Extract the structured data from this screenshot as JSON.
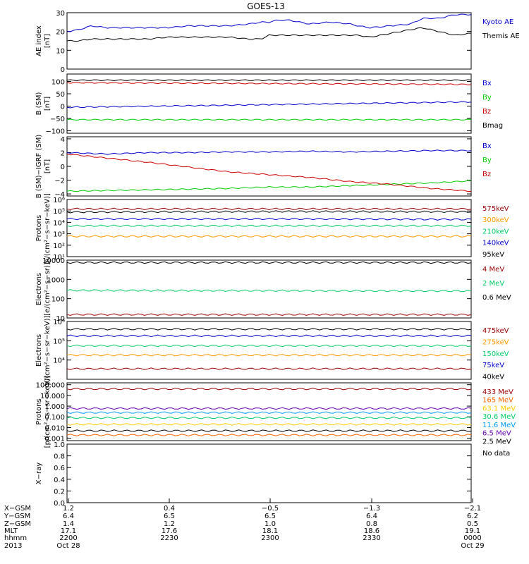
{
  "chart_data": {
    "type": "line",
    "title": "GOES-13",
    "panels": [
      {
        "id": "ae",
        "ylabel": [
          "AE index",
          "[nT]"
        ],
        "yscale": "linear",
        "ylim": [
          0,
          30
        ],
        "ticks": [
          0,
          10,
          20,
          30
        ],
        "tick_labels": [
          "0",
          "10",
          "20",
          "30"
        ],
        "series": [
          {
            "name": "Kyoto AE",
            "color": "#0000cc",
            "x": [
              0,
              0.03,
              0.06,
              0.1,
              0.15,
              0.2,
              0.25,
              0.3,
              0.35,
              0.4,
              0.45,
              0.48,
              0.5,
              0.52,
              0.55,
              0.6,
              0.65,
              0.7,
              0.72,
              0.75,
              0.8,
              0.85,
              0.88,
              0.92,
              0.96,
              1.0
            ],
            "y": [
              20,
              21,
              23,
              22,
              22,
              22,
              22,
              23,
              23,
              23,
              24,
              25,
              25,
              26,
              26,
              24,
              25,
              24,
              23,
              22,
              23,
              24,
              27,
              27,
              29,
              29
            ]
          },
          {
            "name": "Themis AE",
            "color": "#000000",
            "x": [
              0,
              0.03,
              0.06,
              0.1,
              0.15,
              0.2,
              0.25,
              0.3,
              0.35,
              0.4,
              0.45,
              0.48,
              0.5,
              0.52,
              0.55,
              0.6,
              0.65,
              0.7,
              0.72,
              0.75,
              0.8,
              0.85,
              0.88,
              0.92,
              0.96,
              1.0
            ],
            "y": [
              15,
              15,
              16,
              16,
              16,
              16,
              17,
              17,
              17,
              17,
              16,
              16,
              18,
              18,
              18,
              18,
              18,
              18,
              18,
              17,
              19,
              21,
              22,
              20,
              18,
              19
            ]
          }
        ],
        "legend": [
          "Kyoto AE",
          "Themis AE"
        ]
      },
      {
        "id": "bsm",
        "ylabel": [
          "B (SM)",
          "[nT]"
        ],
        "yscale": "linear",
        "ylim": [
          -110,
          130
        ],
        "ticks": [
          -100,
          -50,
          0,
          50,
          100
        ],
        "tick_labels": [
          "−100",
          "−50",
          "0",
          "50",
          "100"
        ],
        "series": [
          {
            "name": "Bx",
            "color": "#0000cc",
            "x": [
              0,
              1
            ],
            "y": [
              -5,
              17
            ]
          },
          {
            "name": "By",
            "color": "#00cc00",
            "x": [
              0,
              1
            ],
            "y": [
              -55,
              -55
            ]
          },
          {
            "name": "Bz",
            "color": "#cc0000",
            "x": [
              0,
              1
            ],
            "y": [
              95,
              88
            ]
          },
          {
            "name": "Bmag",
            "color": "#000000",
            "x": [
              0,
              1
            ],
            "y": [
              105,
              105
            ]
          }
        ],
        "legend": [
          "Bx",
          "By",
          "Bz",
          "Bmag"
        ]
      },
      {
        "id": "bigrf",
        "ylabel": [
          "B (SM)−IGRF (SM)",
          "[nT]"
        ],
        "yscale": "linear",
        "ylim": [
          -4.3,
          4.3
        ],
        "ticks": [
          -4,
          -2,
          0,
          2,
          4
        ],
        "tick_labels": [
          "−4",
          "−2",
          "0",
          "2",
          "4"
        ],
        "series": [
          {
            "name": "Bx",
            "color": "#0000cc",
            "x": [
              0,
              0.1,
              0.2,
              0.3,
              0.4,
              0.5,
              0.6,
              0.7,
              0.8,
              0.9,
              1.0
            ],
            "y": [
              2.0,
              1.8,
              2.0,
              2.0,
              2.1,
              2.1,
              2.2,
              2.1,
              2.2,
              2.3,
              2.3
            ]
          },
          {
            "name": "By",
            "color": "#00cc00",
            "x": [
              0,
              0.1,
              0.2,
              0.3,
              0.4,
              0.5,
              0.6,
              0.7,
              0.8,
              0.9,
              1.0
            ],
            "y": [
              -3.6,
              -3.5,
              -3.4,
              -3.3,
              -3.2,
              -3.0,
              -3.0,
              -2.8,
              -2.6,
              -2.4,
              -2.1
            ]
          },
          {
            "name": "Bz",
            "color": "#cc0000",
            "x": [
              0,
              0.1,
              0.2,
              0.3,
              0.4,
              0.5,
              0.6,
              0.7,
              0.8,
              0.9,
              1.0
            ],
            "y": [
              1.8,
              1.2,
              0.6,
              -0.1,
              -0.8,
              -1.2,
              -1.6,
              -2.2,
              -2.6,
              -3.2,
              -3.6
            ]
          }
        ],
        "legend": [
          "Bx",
          "By",
          "Bz"
        ]
      },
      {
        "id": "protons_low",
        "ylabel": [
          "Protons",
          "p/(cm²−s−sr−keV)]"
        ],
        "yscale": "log",
        "ylim": [
          10,
          1000000
        ],
        "ticks": [
          10,
          100,
          1000,
          10000,
          100000,
          1000000
        ],
        "tick_labels": [
          "10¹",
          "10²",
          "10³",
          "10⁴",
          "10⁵",
          "10⁶"
        ],
        "series": [
          {
            "name": "575keV",
            "color": "#990000",
            "x": [
              0,
              1
            ],
            "y": [
              150000,
              150000
            ]
          },
          {
            "name": "300keV",
            "color": "#ff9900",
            "x": [
              0,
              1
            ],
            "y": [
              600,
              600
            ]
          },
          {
            "name": "210keV",
            "color": "#00cc66",
            "x": [
              0,
              1
            ],
            "y": [
              5000,
              5000
            ]
          },
          {
            "name": "140keV",
            "color": "#0000cc",
            "x": [
              0,
              0.6,
              1
            ],
            "y": [
              20000,
              20000,
              18000
            ]
          },
          {
            "name": "95keV",
            "color": "#000000",
            "x": [
              0,
              0.55,
              1
            ],
            "y": [
              80000,
              90000,
              85000
            ]
          }
        ],
        "legend": [
          "575keV",
          "300keV",
          "210keV",
          "140keV",
          "95keV"
        ]
      },
      {
        "id": "electrons_mev",
        "ylabel": [
          "Electrons",
          "[e/(cm²−s−sr)]"
        ],
        "yscale": "log",
        "ylim": [
          10,
          10000
        ],
        "ticks": [
          10,
          100,
          1000,
          10000
        ],
        "tick_labels": [
          "10",
          "100",
          "1000",
          "10000"
        ],
        "series": [
          {
            "name": "4 MeV",
            "color": "#990000",
            "x": [
              0,
              1
            ],
            "y": [
              15,
              15
            ]
          },
          {
            "name": "2 MeV",
            "color": "#00cc66",
            "x": [
              0,
              1
            ],
            "y": [
              270,
              250
            ]
          },
          {
            "name": "0.6 MeV",
            "color": "#000000",
            "x": [
              0,
              1
            ],
            "y": [
              7500,
              7500
            ]
          }
        ],
        "legend": [
          "4 MeV",
          "2 MeV",
          "0.6 MeV"
        ]
      },
      {
        "id": "electrons_kev",
        "ylabel": [
          "Electrons",
          "p/(cm²−s−sr−keV)]"
        ],
        "yscale": "log",
        "ylim": [
          1000,
          1000000
        ],
        "ticks": [
          10000,
          100000,
          1000000
        ],
        "tick_labels": [
          "10⁴",
          "10⁵",
          "10⁶"
        ],
        "series": [
          {
            "name": "475keV",
            "color": "#990000",
            "x": [
              0,
              1
            ],
            "y": [
              3500,
              3500
            ]
          },
          {
            "name": "275keV",
            "color": "#ff9900",
            "x": [
              0,
              1
            ],
            "y": [
              18000,
              18000
            ]
          },
          {
            "name": "150keV",
            "color": "#00cc66",
            "x": [
              0,
              1
            ],
            "y": [
              55000,
              55000
            ]
          },
          {
            "name": "75keV",
            "color": "#0000cc",
            "x": [
              0,
              1
            ],
            "y": [
              180000,
              180000
            ]
          },
          {
            "name": "40keV",
            "color": "#000000",
            "x": [
              0,
              1
            ],
            "y": [
              400000,
              400000
            ]
          }
        ],
        "legend": [
          "475keV",
          "275keV",
          "150keV",
          "75keV",
          "40keV"
        ]
      },
      {
        "id": "protons_mev",
        "ylabel": [
          "Protons",
          "[p/(cm²−s−sr−keV)]"
        ],
        "yscale": "log",
        "ylim": [
          0.0006,
          150
        ],
        "ticks": [
          0.001,
          0.01,
          0.1,
          1,
          10,
          100
        ],
        "tick_labels": [
          "0.001",
          "0.010",
          "0.100",
          "1.000",
          "10.000",
          "100.000"
        ],
        "series": [
          {
            "name": "433 MeV",
            "color": "#990000",
            "x": [
              0,
              1
            ],
            "y": [
              40,
              40
            ]
          },
          {
            "name": "165 MeV",
            "color": "#ff6600",
            "x": [
              0,
              1
            ],
            "y": [
              0.002,
              0.002
            ]
          },
          {
            "name": "63.1 MeV",
            "color": "#ffcc00",
            "x": [
              0,
              1
            ],
            "y": [
              0.02,
              0.02
            ]
          },
          {
            "name": "30.6 MeV",
            "color": "#00cc66",
            "x": [
              0,
              1
            ],
            "y": [
              0.08,
              0.08
            ]
          },
          {
            "name": "11.6 MeV",
            "color": "#0099ff",
            "x": [
              0,
              1
            ],
            "y": [
              0.25,
              0.25
            ]
          },
          {
            "name": "6.5 MeV",
            "color": "#6600aa",
            "x": [
              0,
              1
            ],
            "y": [
              0.6,
              0.6
            ]
          },
          {
            "name": "2.5 MeV",
            "color": "#000000",
            "x": [
              0,
              1
            ],
            "y": [
              0.005,
              0.005
            ]
          }
        ],
        "legend": [
          "433 MeV",
          "165 MeV",
          "63.1 MeV",
          "30.6 MeV",
          "11.6 MeV",
          "6.5 MeV",
          "2.5 MeV"
        ]
      },
      {
        "id": "xray",
        "ylabel": [
          "X−ray",
          ""
        ],
        "yscale": "linear",
        "ylim": [
          0,
          1
        ],
        "ticks": [
          0,
          0.2,
          0.4,
          0.6,
          0.8,
          1.0
        ],
        "tick_labels": [
          "0.0",
          "0.2",
          "0.4",
          "0.6",
          "0.8",
          "1.0"
        ],
        "series": [],
        "legend": [
          "No data"
        ]
      }
    ],
    "footer": {
      "row_labels": [
        "X−GSM",
        "Y−GSM",
        "Z−GSM",
        "MLT",
        "hhmm",
        "2013"
      ],
      "columns": [
        [
          "1.2",
          "6.4",
          "1.4",
          "17.1",
          "2200",
          "Oct 28"
        ],
        [
          "0.4",
          "6.5",
          "1.2",
          "17.6",
          "2230",
          ""
        ],
        [
          "−0.5",
          "6.5",
          "1.0",
          "18.1",
          "2300",
          ""
        ],
        [
          "−1.3",
          "6.4",
          "0.8",
          "18.6",
          "2330",
          ""
        ],
        [
          "−2.1",
          "6.2",
          "0.5",
          "19.1",
          "0000",
          "Oct 29"
        ]
      ]
    }
  }
}
